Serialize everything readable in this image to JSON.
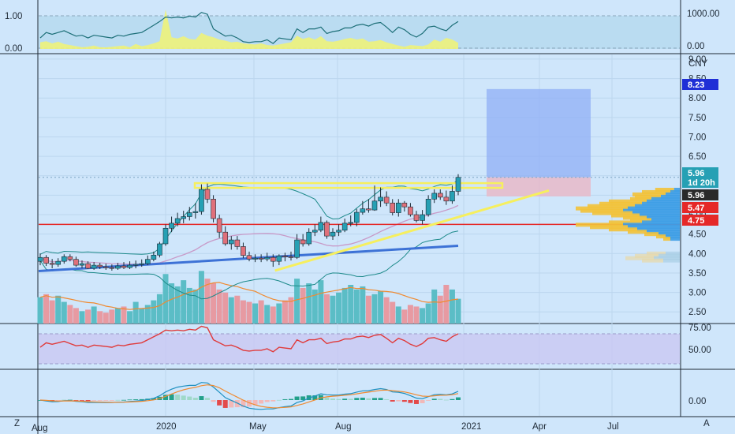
{
  "colors": {
    "background": "#cfe6fb",
    "grid": "#bcd6ee",
    "up": "#26a0b4",
    "down": "#e0707a",
    "up_volume": "#5bbdc6",
    "down_volume": "#e79aa2",
    "resistance_band": "#f6ef5e",
    "support_line": "#e52828",
    "rising_trendline": "#f6ef5e",
    "long_term_line": "#3d72d6",
    "target_zone": "#90aff6",
    "stop_zone": "#e7b9c8",
    "rsi_line": "#e03a3a",
    "macd_line": "#1e90c0",
    "signal_line": "#f08a30",
    "bollinger": "#1d8a8a",
    "ma_line": "#c89ac8",
    "volume_ma": "#f08a30"
  },
  "price_scale": {
    "currency": "CNY",
    "ticks": [
      "9.00",
      "8.50",
      "8.00",
      "7.50",
      "7.00",
      "6.50",
      "6.00",
      "5.50",
      "5.00",
      "4.50",
      "4.00",
      "3.50",
      "3.00",
      "2.50"
    ]
  },
  "time_axis": {
    "labels": [
      "2020",
      "May",
      "Aug",
      "2021",
      "Apr",
      "Jul"
    ],
    "edge_left": "Aug",
    "corner_left": "Z",
    "corner_right": "A"
  },
  "price_tags": [
    {
      "text": "8.23",
      "color": "#1f2fd6"
    },
    {
      "text": "5.96",
      "color": "#26a0b4"
    },
    {
      "text": "1d 20h",
      "color": "#26a0b4"
    },
    {
      "text": "5.96",
      "color": "#2a2a2a"
    },
    {
      "text": "5.47",
      "color": "#e52828"
    },
    {
      "text": "4.75",
      "color": "#e52828"
    }
  ],
  "top_panel": {
    "ticks_left": [
      "1.00",
      "0.00"
    ],
    "ticks_right": [
      "1000.00",
      "0.00"
    ]
  },
  "rsi_panel": {
    "ticks": [
      "75.00",
      "50.00"
    ]
  },
  "macd_panel": {
    "ticks": [
      "0.00"
    ]
  },
  "chart_data": {
    "type": "candlestick",
    "x": [
      "2019-08-02",
      "2019-08-09",
      "2019-08-16",
      "2019-08-23",
      "2019-08-30",
      "2019-09-06",
      "2019-09-13",
      "2019-09-20",
      "2019-09-27",
      "2019-10-11",
      "2019-10-18",
      "2019-10-25",
      "2019-11-01",
      "2019-11-08",
      "2019-11-15",
      "2019-11-22",
      "2019-11-29",
      "2019-12-06",
      "2019-12-13",
      "2019-12-20",
      "2019-12-27",
      "2020-01-03",
      "2020-01-10",
      "2020-01-17",
      "2020-01-23",
      "2020-02-07",
      "2020-02-14",
      "2020-02-21",
      "2020-02-28",
      "2020-03-06",
      "2020-03-13",
      "2020-03-20",
      "2020-03-27",
      "2020-04-03",
      "2020-04-10",
      "2020-04-17",
      "2020-04-24",
      "2020-04-30",
      "2020-05-08",
      "2020-05-15",
      "2020-05-22",
      "2020-05-29",
      "2020-06-05",
      "2020-06-12",
      "2020-06-19",
      "2020-06-24",
      "2020-07-03",
      "2020-07-10",
      "2020-07-17",
      "2020-07-24",
      "2020-07-31",
      "2020-08-07",
      "2020-08-14",
      "2020-08-21",
      "2020-08-28",
      "2020-09-04",
      "2020-09-11",
      "2020-09-18",
      "2020-09-25",
      "2020-09-30",
      "2020-10-16",
      "2020-10-23",
      "2020-10-30",
      "2020-11-06",
      "2020-11-13",
      "2020-11-20",
      "2020-11-27",
      "2020-12-04",
      "2020-12-11",
      "2020-12-18",
      "2020-12-25"
    ],
    "series": [
      {
        "name": "open",
        "values": [
          3.8,
          3.9,
          3.75,
          3.72,
          3.8,
          3.92,
          3.85,
          3.7,
          3.74,
          3.62,
          3.7,
          3.66,
          3.64,
          3.62,
          3.68,
          3.64,
          3.7,
          3.72,
          3.74,
          3.85,
          3.96,
          4.25,
          4.65,
          4.78,
          4.9,
          4.95,
          5.05,
          5.08,
          5.65,
          5.4,
          4.9,
          4.55,
          4.25,
          4.35,
          4.18,
          3.95,
          3.86,
          3.88,
          3.86,
          3.9,
          3.8,
          3.94,
          3.92,
          3.9,
          4.35,
          4.25,
          4.55,
          4.6,
          4.8,
          4.45,
          4.55,
          4.6,
          4.78,
          4.8,
          5.06,
          5.15,
          5.12,
          5.35,
          5.45,
          5.3,
          5.05,
          5.3,
          5.2,
          5.0,
          4.85,
          5.0,
          5.4,
          5.55,
          5.45,
          5.35,
          5.6
        ]
      },
      {
        "name": "high",
        "values": [
          4.0,
          3.96,
          3.86,
          3.88,
          3.98,
          3.98,
          3.92,
          3.82,
          3.8,
          3.78,
          3.76,
          3.74,
          3.72,
          3.76,
          3.78,
          3.8,
          3.82,
          3.85,
          3.95,
          4.05,
          4.3,
          4.75,
          4.95,
          5.05,
          5.1,
          5.2,
          5.3,
          5.78,
          5.8,
          5.5,
          5.0,
          4.7,
          4.45,
          4.45,
          4.28,
          4.05,
          3.98,
          3.98,
          4.02,
          3.98,
          3.98,
          4.02,
          4.05,
          4.5,
          4.5,
          4.65,
          4.75,
          4.95,
          4.85,
          4.65,
          4.75,
          4.9,
          4.98,
          5.15,
          5.35,
          5.4,
          5.75,
          5.7,
          5.6,
          5.4,
          5.4,
          5.35,
          5.3,
          5.1,
          5.12,
          5.5,
          5.65,
          5.65,
          5.62,
          5.75,
          6.04
        ]
      },
      {
        "name": "low",
        "values": [
          3.7,
          3.68,
          3.62,
          3.66,
          3.74,
          3.8,
          3.66,
          3.62,
          3.6,
          3.58,
          3.6,
          3.58,
          3.56,
          3.58,
          3.6,
          3.6,
          3.62,
          3.66,
          3.7,
          3.8,
          3.9,
          4.2,
          4.55,
          4.7,
          4.78,
          4.85,
          4.9,
          5.0,
          5.3,
          4.8,
          4.4,
          4.2,
          4.1,
          4.1,
          3.88,
          3.8,
          3.78,
          3.78,
          3.8,
          3.66,
          3.7,
          3.8,
          3.82,
          3.86,
          4.18,
          4.2,
          4.45,
          4.55,
          4.38,
          4.35,
          4.45,
          4.55,
          4.7,
          4.7,
          5.0,
          5.05,
          5.1,
          5.2,
          5.22,
          4.98,
          4.95,
          5.08,
          4.95,
          4.8,
          4.75,
          4.95,
          5.3,
          5.38,
          5.25,
          5.28,
          5.5
        ]
      },
      {
        "name": "close",
        "values": [
          3.9,
          3.75,
          3.72,
          3.8,
          3.92,
          3.85,
          3.7,
          3.74,
          3.62,
          3.7,
          3.66,
          3.64,
          3.62,
          3.68,
          3.64,
          3.7,
          3.72,
          3.74,
          3.85,
          3.96,
          4.25,
          4.65,
          4.78,
          4.9,
          4.95,
          5.05,
          5.08,
          5.65,
          5.4,
          4.9,
          4.55,
          4.25,
          4.35,
          4.18,
          3.95,
          3.86,
          3.88,
          3.86,
          3.9,
          3.8,
          3.94,
          3.92,
          3.9,
          4.35,
          4.25,
          4.55,
          4.6,
          4.8,
          4.45,
          4.55,
          4.6,
          4.78,
          4.8,
          5.06,
          5.15,
          5.12,
          5.35,
          5.45,
          5.3,
          5.05,
          5.3,
          5.2,
          5.0,
          4.85,
          5.0,
          5.4,
          5.55,
          5.45,
          5.35,
          5.6,
          5.96
        ]
      },
      {
        "name": "volume",
        "values": [
          34,
          38,
          30,
          36,
          28,
          24,
          20,
          16,
          18,
          22,
          16,
          14,
          18,
          20,
          22,
          16,
          28,
          20,
          24,
          30,
          38,
          64,
          52,
          48,
          56,
          46,
          44,
          68,
          58,
          52,
          44,
          40,
          34,
          36,
          30,
          28,
          26,
          30,
          24,
          22,
          26,
          30,
          34,
          58,
          46,
          52,
          44,
          56,
          38,
          36,
          40,
          46,
          50,
          44,
          48,
          36,
          38,
          42,
          34,
          28,
          22,
          18,
          24,
          22,
          20,
          26,
          44,
          36,
          50,
          44,
          32
        ]
      }
    ],
    "price_range": [
      2.2,
      9.1
    ],
    "levels": {
      "resistance": 5.75,
      "support": 4.75,
      "target": 8.23,
      "entry": 5.96,
      "stop": 5.47
    },
    "rsi": {
      "values": [
        52,
        58,
        56,
        58,
        60,
        57,
        54,
        55,
        52,
        55,
        54,
        53,
        52,
        55,
        54,
        56,
        57,
        58,
        62,
        66,
        70,
        75,
        74,
        75,
        74,
        76,
        75,
        80,
        78,
        62,
        58,
        54,
        55,
        52,
        48,
        47,
        48,
        48,
        50,
        46,
        52,
        51,
        50,
        62,
        58,
        62,
        62,
        64,
        57,
        59,
        60,
        63,
        63,
        66,
        67,
        65,
        68,
        69,
        64,
        58,
        64,
        61,
        56,
        53,
        57,
        64,
        65,
        62,
        60,
        66,
        70
      ]
    }
  }
}
